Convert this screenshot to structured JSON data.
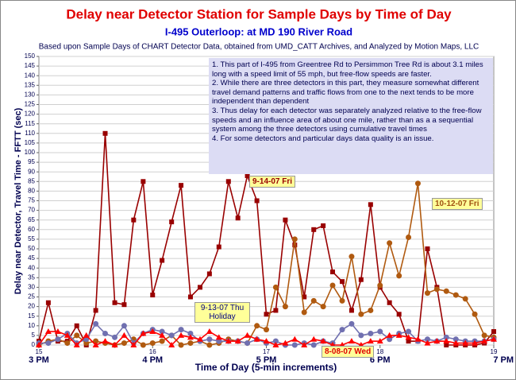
{
  "chart_data": {
    "type": "line",
    "title": "Delay near Detector Station for Sample Days by Time of Day",
    "subtitle": "I-495 Outerloop: at MD 190 River Road",
    "source_note": "Based upon Sample Days of CHART Detector Data, obtained from UMD_CATT Archives, and Analyzed by Motion Maps, LLC",
    "x_label": "Time of Day (5-min increments)",
    "y_label": "Delay near Detector, Travel Time - FFTT (sec)",
    "notes": [
      "1. This part of I-495 from Greentree Rd to Persimmon Tree Rd is about 3.1 miles long with a speed limit of 55 mph, but free-flow speeds are faster.",
      "2. While there are three detectors in this part, they measure somewhat different travel demand patterns and traffic flows from one to the next tends to be more independent than dependent",
      "3. Thus delay for each detector was separately analyzed relative to the free-flow speeds and an influence area of about one mile, rather than as a a sequential system among the three detectors using cumulative travel times",
      "4. For some detectors and particular days data quality is an issue."
    ],
    "xlim": [
      15,
      19
    ],
    "xticks": [
      15,
      16,
      17,
      18,
      19
    ],
    "hour_labels": [
      "3 PM",
      "4 PM",
      "5 PM",
      "6 PM",
      "7 PM"
    ],
    "ylim": [
      0,
      150
    ],
    "yticks": [
      0,
      5,
      10,
      15,
      20,
      25,
      30,
      35,
      40,
      45,
      50,
      55,
      60,
      65,
      70,
      75,
      80,
      85,
      90,
      95,
      100,
      105,
      110,
      115,
      120,
      125,
      130,
      135,
      140,
      145,
      150
    ],
    "grid": true,
    "x": [
      15,
      15.083,
      15.167,
      15.25,
      15.333,
      15.417,
      15.5,
      15.583,
      15.667,
      15.75,
      15.833,
      15.917,
      16,
      16.083,
      16.167,
      16.25,
      16.333,
      16.417,
      16.5,
      16.583,
      16.667,
      16.75,
      16.833,
      16.917,
      17,
      17.083,
      17.167,
      17.25,
      17.333,
      17.417,
      17.5,
      17.583,
      17.667,
      17.75,
      17.833,
      17.917,
      18,
      18.083,
      18.167,
      18.25,
      18.333,
      18.417,
      18.5,
      18.583,
      18.667,
      18.75,
      18.833,
      18.917,
      19
    ],
    "series": [
      {
        "name": "9-14-07 Fri",
        "color": "#990000",
        "marker": "square",
        "values": [
          2,
          22,
          2,
          2,
          10,
          0,
          18,
          110,
          22,
          21,
          65,
          85,
          26,
          44,
          64,
          83,
          25,
          30,
          37,
          51,
          85,
          66,
          88,
          75,
          16,
          18,
          65,
          52,
          25,
          60,
          62,
          38,
          33,
          18,
          34,
          73,
          30,
          22,
          16,
          2,
          2,
          50,
          30,
          0,
          0,
          0,
          0,
          1,
          7
        ]
      },
      {
        "name": "10-12-07 Fri",
        "color": "#b05a10",
        "marker": "circle",
        "values": [
          0,
          2,
          3,
          1,
          5,
          1,
          2,
          1,
          0,
          1,
          3,
          0,
          1,
          2,
          5,
          0,
          1,
          2,
          0,
          1,
          3,
          2,
          1,
          10,
          8,
          30,
          20,
          55,
          17,
          23,
          20,
          31,
          23,
          46,
          16,
          18,
          31,
          53,
          36,
          56,
          84,
          27,
          29,
          28,
          26,
          24,
          16,
          5,
          4
        ]
      },
      {
        "name": "9-13-07 Thu Holiday",
        "color": "#7070b0",
        "marker": "circle",
        "values": [
          1,
          1,
          3,
          6,
          1,
          3,
          11,
          6,
          4,
          10,
          1,
          6,
          8,
          7,
          5,
          8,
          6,
          2,
          3,
          2,
          2,
          2,
          1,
          3,
          1,
          2,
          0,
          0,
          1,
          0,
          2,
          1,
          8,
          11,
          5,
          6,
          7,
          3,
          6,
          7,
          2,
          3,
          2,
          4,
          3,
          2,
          2,
          2,
          3
        ]
      },
      {
        "name": "8-08-07 Wed",
        "color": "#ff0000",
        "marker": "triangle",
        "values": [
          0,
          7,
          7,
          5,
          0,
          5,
          0,
          2,
          0,
          5,
          0,
          6,
          7,
          5,
          0,
          5,
          4,
          3,
          7,
          4,
          2,
          2,
          5,
          3,
          2,
          0,
          1,
          3,
          0,
          3,
          2,
          0,
          0,
          2,
          0,
          2,
          2,
          5,
          5,
          4,
          3,
          1,
          2,
          2,
          1,
          1,
          1,
          2,
          3
        ]
      }
    ]
  }
}
